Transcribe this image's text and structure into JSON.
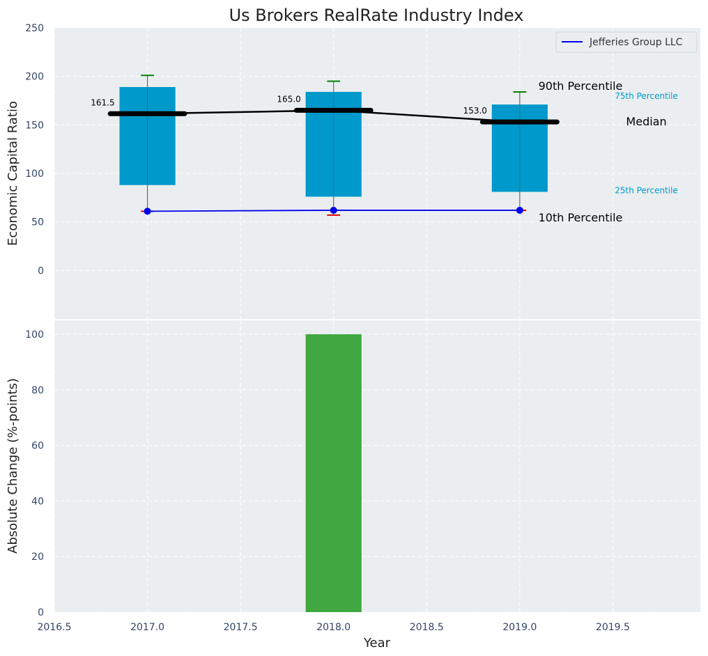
{
  "chart_data": {
    "type": "box",
    "title": "Us Brokers RealRate Industry Index",
    "xlabel": "Year",
    "x_ticks": [
      "2016.5",
      "2017.0",
      "2017.5",
      "2018.0",
      "2018.5",
      "2019.0",
      "2019.5"
    ],
    "xlim": [
      2016.5,
      2019.97
    ],
    "grid": true,
    "panels": [
      {
        "id": "top",
        "ylabel": "Economic Capital Ratio",
        "ylim": [
          -50,
          250
        ],
        "y_ticks": [
          "0",
          "50",
          "100",
          "150",
          "200",
          "250"
        ],
        "legend": {
          "placement": "top-right",
          "entries": [
            "Jefferies Group LLC"
          ]
        },
        "years": [
          2017,
          2018,
          2019
        ],
        "p10": [
          61,
          57,
          62
        ],
        "p25": [
          88,
          76,
          81
        ],
        "median": [
          161.5,
          165.0,
          153.0
        ],
        "p75": [
          189,
          184,
          171
        ],
        "p90": [
          201,
          195,
          184
        ],
        "median_labels": [
          "161.5",
          "165.0",
          "153.0"
        ],
        "company_series": {
          "name": "Jefferies Group LLC",
          "values": [
            61,
            62,
            62
          ],
          "color": "#0000ee"
        },
        "annotations": {
          "p90": "90th Percentile",
          "p75": "75th Percentile",
          "median": "Median",
          "p25": "25th Percentile",
          "p10": "10th Percentile"
        }
      },
      {
        "id": "bottom",
        "ylabel": "Absolute Change (%-points)",
        "ylim": [
          0,
          105
        ],
        "y_ticks": [
          "0",
          "20",
          "40",
          "60",
          "80",
          "100"
        ],
        "type": "bar",
        "x": [
          2018
        ],
        "values": [
          100
        ],
        "color": "#2ca02c"
      }
    ],
    "colors": {
      "box": "#0099cc",
      "median": "#000000",
      "p90_cap": "#008000",
      "p10_cap": "#e00000",
      "panel_bg": "#eaeef0",
      "tick_text": "#334466"
    }
  }
}
